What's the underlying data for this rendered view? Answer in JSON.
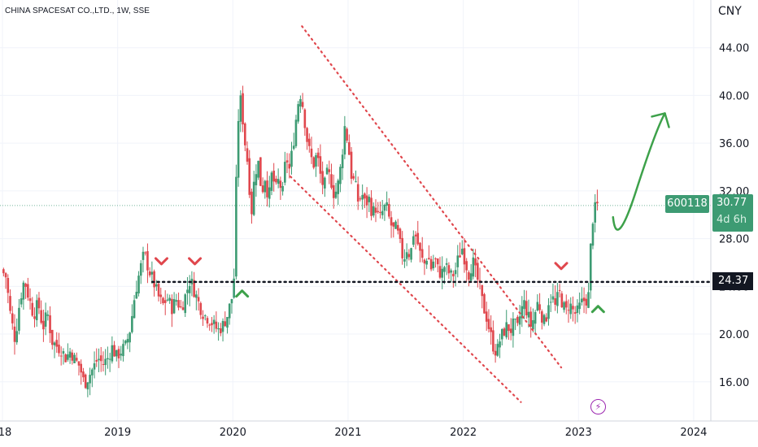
{
  "header": {
    "title": "CHINA SPACESAT CO.,LTD., 1W, SSE",
    "currency": "CNY"
  },
  "price": {
    "symbol": "600118",
    "last": "30.77",
    "countdown": "4d 6h",
    "level_label": "24.37"
  },
  "colors": {
    "up": "#3d9b73",
    "down": "#e0474d",
    "channel": "#e0474d",
    "level": "#131722",
    "arrow": "#3da14a",
    "grid": "#f0f3fa"
  },
  "icons": {
    "flash": "lightning-bolt-icon"
  },
  "chart_data": {
    "type": "candlestick",
    "title": "CHINA SPACESAT CO.,LTD., 1W, SSE",
    "ylabel": "CNY",
    "ylim": [
      13.6,
      46.5
    ],
    "yticks": [
      "16.00",
      "20.00",
      "24.00",
      "28.00",
      "32.00",
      "36.00",
      "40.00",
      "44.00"
    ],
    "xticks": [
      {
        "label": "18",
        "year": 2018.0
      },
      {
        "label": "2019",
        "year": 2019.0
      },
      {
        "label": "2020",
        "year": 2020.0
      },
      {
        "label": "2021",
        "year": 2021.0
      },
      {
        "label": "2022",
        "year": 2022.0
      },
      {
        "label": "2023",
        "year": 2023.0
      },
      {
        "label": "2024",
        "year": 2024.0
      }
    ],
    "xlim": [
      2018.0,
      2024.05
    ],
    "grid": true,
    "support_level": 24.37,
    "last_price": 30.77,
    "price_path": [
      [
        2018.0,
        25.4
      ],
      [
        2018.04,
        24.8
      ],
      [
        2018.08,
        21.5
      ],
      [
        2018.12,
        19.5
      ],
      [
        2018.16,
        22.8
      ],
      [
        2018.2,
        24.6
      ],
      [
        2018.24,
        23.0
      ],
      [
        2018.28,
        21.6
      ],
      [
        2018.32,
        22.6
      ],
      [
        2018.36,
        20.5
      ],
      [
        2018.4,
        21.8
      ],
      [
        2018.44,
        19.4
      ],
      [
        2018.48,
        19.0
      ],
      [
        2018.52,
        18.7
      ],
      [
        2018.56,
        18.0
      ],
      [
        2018.6,
        18.6
      ],
      [
        2018.64,
        17.8
      ],
      [
        2018.68,
        17.3
      ],
      [
        2018.72,
        15.8
      ],
      [
        2018.76,
        16.5
      ],
      [
        2018.8,
        17.2
      ],
      [
        2018.84,
        18.0
      ],
      [
        2018.88,
        17.5
      ],
      [
        2018.92,
        17.9
      ],
      [
        2018.96,
        18.9
      ],
      [
        2019.0,
        18.1
      ],
      [
        2019.04,
        18.6
      ],
      [
        2019.08,
        19.0
      ],
      [
        2019.12,
        20.5
      ],
      [
        2019.16,
        23.4
      ],
      [
        2019.2,
        25.2
      ],
      [
        2019.24,
        26.8
      ],
      [
        2019.28,
        25.4
      ],
      [
        2019.32,
        24.4
      ],
      [
        2019.36,
        23.2
      ],
      [
        2019.4,
        22.4
      ],
      [
        2019.44,
        23.0
      ],
      [
        2019.48,
        22.2
      ],
      [
        2019.52,
        22.9
      ],
      [
        2019.56,
        22.1
      ],
      [
        2019.6,
        23.3
      ],
      [
        2019.64,
        24.6
      ],
      [
        2019.68,
        23.5
      ],
      [
        2019.72,
        22.4
      ],
      [
        2019.76,
        21.6
      ],
      [
        2019.8,
        21.3
      ],
      [
        2019.84,
        20.8
      ],
      [
        2019.88,
        20.3
      ],
      [
        2019.92,
        20.7
      ],
      [
        2019.96,
        21.5
      ],
      [
        2020.0,
        23.0
      ],
      [
        2020.02,
        24.8
      ],
      [
        2020.05,
        37.5
      ],
      [
        2020.08,
        39.8
      ],
      [
        2020.11,
        36.4
      ],
      [
        2020.14,
        34.2
      ],
      [
        2020.17,
        30.0
      ],
      [
        2020.2,
        33.5
      ],
      [
        2020.23,
        34.4
      ],
      [
        2020.26,
        31.8
      ],
      [
        2020.29,
        33.2
      ],
      [
        2020.32,
        31.2
      ],
      [
        2020.35,
        33.6
      ],
      [
        2020.38,
        32.0
      ],
      [
        2020.41,
        33.0
      ],
      [
        2020.44,
        31.6
      ],
      [
        2020.47,
        35.0
      ],
      [
        2020.5,
        33.8
      ],
      [
        2020.53,
        35.6
      ],
      [
        2020.56,
        38.2
      ],
      [
        2020.59,
        40.4
      ],
      [
        2020.62,
        39.0
      ],
      [
        2020.65,
        36.5
      ],
      [
        2020.68,
        35.0
      ],
      [
        2020.71,
        34.2
      ],
      [
        2020.74,
        35.1
      ],
      [
        2020.77,
        33.3
      ],
      [
        2020.8,
        32.2
      ],
      [
        2020.83,
        33.5
      ],
      [
        2020.86,
        33.0
      ],
      [
        2020.89,
        31.6
      ],
      [
        2020.92,
        32.4
      ],
      [
        2020.95,
        34.3
      ],
      [
        2020.98,
        37.4
      ],
      [
        2021.01,
        36.0
      ],
      [
        2021.04,
        33.2
      ],
      [
        2021.07,
        32.6
      ],
      [
        2021.1,
        31.0
      ],
      [
        2021.13,
        31.8
      ],
      [
        2021.16,
        30.8
      ],
      [
        2021.19,
        31.4
      ],
      [
        2021.22,
        30.1
      ],
      [
        2021.25,
        30.6
      ],
      [
        2021.28,
        29.5
      ],
      [
        2021.31,
        30.3
      ],
      [
        2021.34,
        30.8
      ],
      [
        2021.37,
        29.5
      ],
      [
        2021.4,
        28.7
      ],
      [
        2021.43,
        28.9
      ],
      [
        2021.46,
        27.5
      ],
      [
        2021.49,
        26.2
      ],
      [
        2021.52,
        27.2
      ],
      [
        2021.55,
        26.5
      ],
      [
        2021.58,
        28.7
      ],
      [
        2021.61,
        27.8
      ],
      [
        2021.64,
        26.5
      ],
      [
        2021.67,
        25.8
      ],
      [
        2021.7,
        26.7
      ],
      [
        2021.73,
        25.5
      ],
      [
        2021.76,
        26.4
      ],
      [
        2021.79,
        25.4
      ],
      [
        2021.82,
        25.0
      ],
      [
        2021.85,
        25.8
      ],
      [
        2021.88,
        25.2
      ],
      [
        2021.91,
        24.8
      ],
      [
        2021.94,
        25.3
      ],
      [
        2021.97,
        26.5
      ],
      [
        2022.0,
        27.2
      ],
      [
        2022.03,
        26.0
      ],
      [
        2022.06,
        25.0
      ],
      [
        2022.09,
        26.2
      ],
      [
        2022.12,
        25.0
      ],
      [
        2022.15,
        24.0
      ],
      [
        2022.18,
        22.4
      ],
      [
        2022.21,
        21.5
      ],
      [
        2022.24,
        20.2
      ],
      [
        2022.27,
        19.0
      ],
      [
        2022.3,
        18.4
      ],
      [
        2022.33,
        19.6
      ],
      [
        2022.36,
        20.2
      ],
      [
        2022.39,
        20.7
      ],
      [
        2022.42,
        20.3
      ],
      [
        2022.45,
        20.9
      ],
      [
        2022.48,
        20.4
      ],
      [
        2022.51,
        22.0
      ],
      [
        2022.54,
        22.6
      ],
      [
        2022.57,
        21.6
      ],
      [
        2022.6,
        20.6
      ],
      [
        2022.63,
        21.7
      ],
      [
        2022.66,
        22.8
      ],
      [
        2022.69,
        21.6
      ],
      [
        2022.72,
        20.8
      ],
      [
        2022.75,
        22.8
      ],
      [
        2022.78,
        23.2
      ],
      [
        2022.81,
        22.2
      ],
      [
        2022.84,
        23.6
      ],
      [
        2022.87,
        22.6
      ],
      [
        2022.9,
        21.8
      ],
      [
        2022.93,
        22.6
      ],
      [
        2022.96,
        22.0
      ],
      [
        2022.99,
        21.6
      ],
      [
        2023.02,
        22.3
      ],
      [
        2023.05,
        22.8
      ],
      [
        2023.08,
        22.9
      ],
      [
        2023.1,
        23.3
      ],
      [
        2023.12,
        28.4
      ],
      [
        2023.14,
        30.2
      ],
      [
        2023.17,
        30.77
      ]
    ],
    "annotations": {
      "descending_channel_upper": [
        [
          2020.6,
          45.8
        ],
        [
          2022.85,
          17.2
        ]
      ],
      "descending_channel_lower": [
        [
          2020.5,
          33.2
        ],
        [
          2022.5,
          14.3
        ]
      ],
      "resistance_marks": [
        [
          2019.38,
          26.0
        ],
        [
          2019.67,
          26.0
        ],
        [
          2022.85,
          25.6
        ]
      ],
      "support_marks": [
        [
          2020.08,
          23.5
        ],
        [
          2023.17,
          22.2
        ]
      ],
      "projection_arrow": [
        [
          2023.3,
          29.8
        ],
        [
          2023.33,
          28.4
        ],
        [
          2023.5,
          32.0
        ],
        [
          2023.66,
          35.4
        ],
        [
          2023.75,
          38.5
        ]
      ]
    }
  }
}
